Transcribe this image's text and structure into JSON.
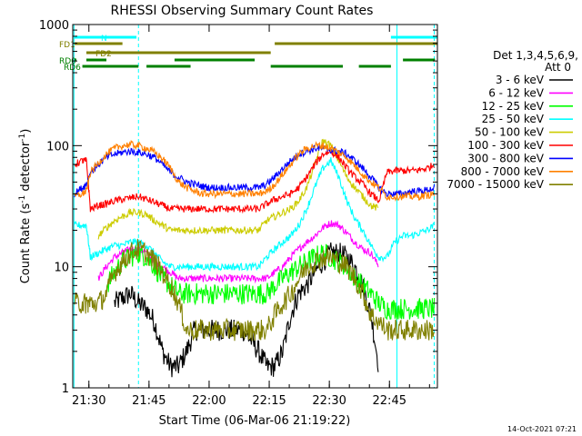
{
  "chart_data": {
    "type": "line",
    "title": "RHESSI Observing Summary Count Rates",
    "xlabel": "Start Time (06-Mar-06 21:19:22)",
    "ylabel_main": "Count Rate (s",
    "ylabel_sup1": "-1",
    "ylabel_mid": " detector",
    "ylabel_sup2": "-1",
    "ylabel_end": ")",
    "x_unit": "minutes since 21:19:22",
    "xlim": [
      6.6,
      97.6
    ],
    "ylim": [
      1,
      1000
    ],
    "yscale": "log",
    "x_ticks": [
      {
        "x": 10.63,
        "label": "21:30"
      },
      {
        "x": 25.63,
        "label": "21:45"
      },
      {
        "x": 40.63,
        "label": "22:00"
      },
      {
        "x": 55.63,
        "label": "22:15"
      },
      {
        "x": 70.63,
        "label": "22:30"
      },
      {
        "x": 85.63,
        "label": "22:45"
      }
    ],
    "y_ticks": [
      {
        "y": 1,
        "label": "1"
      },
      {
        "y": 10,
        "label": "10"
      },
      {
        "y": 100,
        "label": "100"
      },
      {
        "y": 1000,
        "label": "1000"
      }
    ],
    "detector_text": "Det 1,3,4,5,6,9,",
    "attenuator_text": "Att 0",
    "date_stamp": "14-Oct-2021 07:21",
    "legend_position": "right",
    "series": [
      {
        "name": "3 - 6 keV",
        "color": "#000000"
      },
      {
        "name": "6 - 12 keV",
        "color": "#ff00ff"
      },
      {
        "name": "12 - 25 keV",
        "color": "#00ff00"
      },
      {
        "name": "25 - 50 keV",
        "color": "#00ffff"
      },
      {
        "name": "50 - 100 keV",
        "color": "#cccc00"
      },
      {
        "name": "100 - 300 keV",
        "color": "#ff0000"
      },
      {
        "name": "300 - 800 keV",
        "color": "#0000ff"
      },
      {
        "name": "800 - 7000 keV",
        "color": "#ff8000"
      },
      {
        "name": "7000 - 15000 keV",
        "color": "#808000"
      }
    ],
    "flag_bars": [
      {
        "label": "N",
        "color": "#00ffff",
        "segments": [
          [
            7.0,
            22.5
          ],
          [
            86.0,
            97.6
          ]
        ]
      },
      {
        "label": "FD1",
        "color": "#808000",
        "segments": [
          [
            7.0,
            19.0
          ],
          [
            57.0,
            97.6
          ]
        ]
      },
      {
        "label": "FD2",
        "color": "#808000",
        "segments": [
          [
            10.0,
            56.0
          ]
        ]
      },
      {
        "label": "RD0",
        "color": "#008000",
        "segments": [
          [
            7.0,
            7.5
          ],
          [
            10.0,
            15.0
          ],
          [
            32.0,
            52.0
          ],
          [
            89.0,
            97.0
          ]
        ]
      },
      {
        "label": "RD6",
        "color": "#008000",
        "segments": [
          [
            9.0,
            23.0
          ],
          [
            25.0,
            36.0
          ],
          [
            56.0,
            74.0
          ],
          [
            78.0,
            86.0
          ]
        ]
      }
    ],
    "vertical_lines": [
      {
        "x": 6.9,
        "style": "solid",
        "color": "#00ffff"
      },
      {
        "x": 23.0,
        "style": "dashed",
        "color": "#00ffff"
      },
      {
        "x": 87.5,
        "style": "solid",
        "color": "#00ffff"
      },
      {
        "x": 96.8,
        "style": "dashed",
        "color": "#00ffff"
      }
    ],
    "sampled_curves": {
      "x": [
        7,
        9,
        10,
        11,
        13,
        15,
        17,
        19,
        21,
        23,
        25,
        27,
        29,
        31,
        33,
        35,
        37,
        39,
        41,
        43,
        45,
        47,
        49,
        51,
        53,
        55,
        57,
        59,
        61,
        63,
        65,
        67,
        69,
        71,
        73,
        75,
        77,
        79,
        81,
        83,
        85,
        87,
        89,
        91,
        93,
        95,
        97
      ],
      "3 - 6 keV": [
        null,
        null,
        null,
        null,
        null,
        null,
        5,
        5.5,
        6,
        5,
        4.5,
        3.5,
        2,
        1.5,
        1.5,
        2,
        3,
        3,
        3,
        3,
        3,
        3,
        3,
        2.5,
        2,
        1.5,
        1.5,
        2,
        4,
        6,
        7,
        9,
        11,
        13,
        13,
        12,
        10,
        7,
        4,
        1.5,
        null,
        null,
        null,
        null,
        null,
        null,
        null
      ],
      "6 - 12 keV": [
        null,
        null,
        null,
        null,
        8,
        10,
        12,
        13,
        14,
        14,
        13,
        11,
        10,
        9,
        8,
        8,
        8,
        8,
        8,
        8,
        8,
        8,
        8,
        8,
        8,
        8,
        9,
        10,
        12,
        14,
        16,
        18,
        21,
        23,
        22,
        19,
        16,
        14,
        13,
        10,
        null,
        null,
        null,
        null,
        null,
        null,
        null
      ],
      "12 - 25 keV": [
        null,
        null,
        null,
        null,
        null,
        7,
        9,
        11,
        12,
        13,
        12,
        10,
        8,
        7,
        6,
        6,
        6,
        6,
        6,
        6,
        6,
        6,
        6,
        6,
        6,
        6,
        7,
        8,
        9,
        10,
        11,
        12,
        13,
        12,
        11,
        10,
        8,
        7,
        6,
        5,
        4.5,
        4.5,
        4.5,
        4.5,
        4.5,
        4.5,
        4.5
      ],
      "25 - 50 keV": [
        22,
        22,
        22,
        12,
        13,
        14,
        15,
        15,
        16,
        16,
        15,
        13,
        11,
        10,
        10,
        10,
        10,
        10,
        10,
        10,
        10,
        10,
        10,
        10,
        10,
        12,
        14,
        16,
        18,
        22,
        30,
        45,
        65,
        75,
        55,
        35,
        25,
        20,
        15,
        12,
        12,
        16,
        18,
        18,
        19,
        20,
        22
      ],
      "50 - 100 keV": [
        null,
        null,
        null,
        null,
        18,
        21,
        24,
        26,
        28,
        28,
        27,
        24,
        22,
        20,
        20,
        20,
        20,
        20,
        20,
        20,
        20,
        20,
        20,
        20,
        20,
        24,
        26,
        28,
        30,
        35,
        45,
        70,
        110,
        100,
        75,
        55,
        45,
        38,
        32,
        30,
        null,
        null,
        null,
        null,
        null,
        null,
        null
      ],
      "100 - 300 keV": [
        70,
        75,
        75,
        30,
        32,
        33,
        35,
        36,
        37,
        38,
        36,
        34,
        32,
        30,
        30,
        30,
        30,
        30,
        30,
        30,
        30,
        30,
        30,
        30,
        30,
        33,
        36,
        38,
        40,
        45,
        55,
        70,
        85,
        90,
        80,
        65,
        55,
        48,
        40,
        35,
        60,
        62,
        62,
        62,
        63,
        65,
        70
      ],
      "300 - 800 keV": [
        40,
        45,
        48,
        60,
        70,
        80,
        85,
        88,
        90,
        88,
        85,
        80,
        70,
        60,
        55,
        50,
        48,
        46,
        45,
        45,
        45,
        45,
        45,
        45,
        45,
        48,
        55,
        65,
        75,
        85,
        90,
        95,
        95,
        92,
        90,
        85,
        75,
        65,
        55,
        45,
        40,
        40,
        40,
        42,
        42,
        43,
        45
      ],
      "800 - 7000 keV": [
        38,
        40,
        42,
        60,
        72,
        85,
        95,
        100,
        102,
        100,
        95,
        88,
        78,
        65,
        50,
        45,
        42,
        40,
        40,
        40,
        40,
        40,
        40,
        40,
        40,
        42,
        48,
        58,
        70,
        85,
        95,
        100,
        100,
        95,
        88,
        80,
        68,
        58,
        50,
        45,
        38,
        38,
        38,
        38,
        38,
        39,
        40
      ],
      "7000 - 15000 keV": [
        5,
        5,
        5,
        5,
        5,
        6,
        9,
        11,
        13,
        14,
        13,
        11,
        9,
        7,
        5,
        3,
        3,
        3,
        3,
        3,
        3,
        3,
        3,
        3,
        3,
        3,
        4,
        5,
        6,
        8,
        10,
        11,
        12,
        12,
        11,
        10,
        8,
        6,
        4,
        3.5,
        3,
        3,
        3,
        3,
        3,
        3,
        3
      ]
    }
  }
}
